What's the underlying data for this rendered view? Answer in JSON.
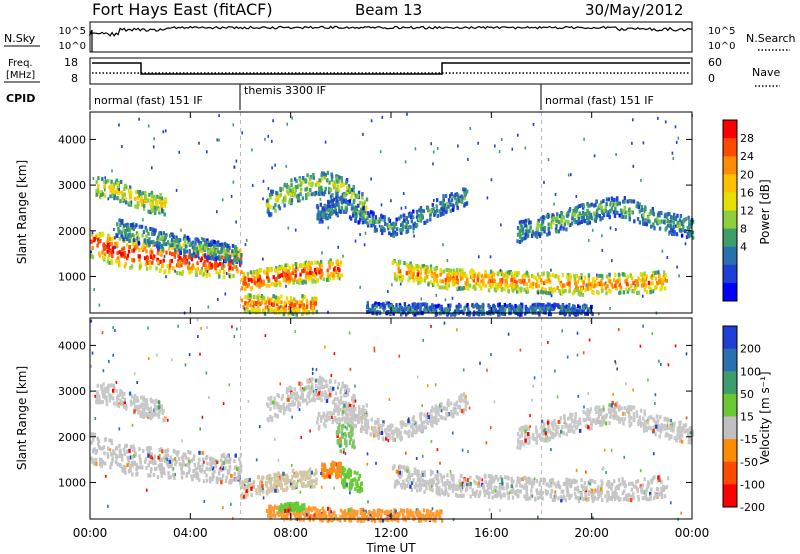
{
  "header": {
    "station": "Fort Hays East (fitACF)",
    "beam": "Beam 13",
    "date": "30/May/2012"
  },
  "top_panels": {
    "nsky_label": "N.Sky",
    "nsky_ticks": [
      "10^5",
      "10^0"
    ],
    "nsearch_label": "N.Search",
    "nsearch_ticks": [
      "10^5",
      "10^0"
    ],
    "freq_label_1": "Freq.",
    "freq_label_2": "[MHz]",
    "freq_ticks": [
      "18",
      "8"
    ],
    "nave_label": "Nave",
    "nave_ticks": [
      "60",
      "0"
    ],
    "cpid_label": "CPID",
    "cpid_segments": [
      {
        "label": "normal (fast) 151 IF",
        "start_h": 0,
        "end_h": 6
      },
      {
        "label": "themis 3300 IF",
        "start_h": 6,
        "end_h": 18
      },
      {
        "label": "normal (fast) 151 IF",
        "start_h": 18,
        "end_h": 24
      }
    ]
  },
  "chart_data": [
    {
      "type": "heatmap",
      "name": "power",
      "ylabel": "Slant Range [km]",
      "xlabel": "Time UT",
      "x_ticks": [
        "00:00",
        "04:00",
        "08:00",
        "12:00",
        "16:00",
        "20:00",
        "00:00"
      ],
      "x_tick_hours": [
        0,
        4,
        8,
        12,
        16,
        20,
        24
      ],
      "y_ticks": [
        1000,
        2000,
        3000,
        4000
      ],
      "ylim": [
        200,
        4600
      ],
      "xlim_hours": [
        0,
        24
      ],
      "colorbar_label": "Power [dB]",
      "colorbar_ticks": [
        "28",
        "24",
        "20",
        "16",
        "12",
        "8",
        "4"
      ],
      "colorbar_colors": [
        "#ff0000",
        "#ff4a00",
        "#ff8c00",
        "#ffc000",
        "#e6e000",
        "#8fcf3c",
        "#3d9e6b",
        "#2a6fb0",
        "#1e3fd6",
        "#0000ff"
      ],
      "bands": [
        {
          "points": [
            [
              0.2,
              3000
            ],
            [
              1,
              2950
            ],
            [
              2,
              2700
            ],
            [
              3,
              2600
            ]
          ],
          "width": 220,
          "level": 0.55
        },
        {
          "points": [
            [
              0,
              1800
            ],
            [
              1,
              1600
            ],
            [
              2,
              1500
            ],
            [
              3,
              1450
            ],
            [
              4,
              1400
            ],
            [
              5,
              1350
            ],
            [
              6,
              1350
            ]
          ],
          "width": 320,
          "level": 0.85
        },
        {
          "points": [
            [
              1,
              2100
            ],
            [
              2,
              1950
            ],
            [
              3,
              1800
            ],
            [
              4,
              1700
            ],
            [
              5,
              1600
            ],
            [
              6,
              1500
            ]
          ],
          "width": 200,
          "level": 0.35
        },
        {
          "points": [
            [
              6,
              900
            ],
            [
              7,
              1000
            ],
            [
              8,
              1100
            ],
            [
              9,
              1150
            ],
            [
              10,
              1200
            ]
          ],
          "width": 220,
          "level": 0.8
        },
        {
          "points": [
            [
              6,
              450
            ],
            [
              7,
              420
            ],
            [
              8,
              400
            ],
            [
              9,
              430
            ]
          ],
          "width": 200,
          "level": 0.75
        },
        {
          "points": [
            [
              7,
              2600
            ],
            [
              8,
              2900
            ],
            [
              9,
              3100
            ],
            [
              10,
              3000
            ],
            [
              11,
              2500
            ]
          ],
          "width": 260,
          "level": 0.45
        },
        {
          "points": [
            [
              9,
              2400
            ],
            [
              10,
              2600
            ],
            [
              11,
              2300
            ],
            [
              12,
              2100
            ],
            [
              13,
              2300
            ],
            [
              14,
              2600
            ],
            [
              15,
              2800
            ]
          ],
          "width": 200,
          "level": 0.3
        },
        {
          "points": [
            [
              12,
              1200
            ],
            [
              14,
              1000
            ],
            [
              16,
              950
            ],
            [
              18,
              900
            ],
            [
              20,
              850
            ],
            [
              22,
              900
            ],
            [
              23,
              950
            ]
          ],
          "width": 220,
          "level": 0.7
        },
        {
          "points": [
            [
              17,
              2000
            ],
            [
              19,
              2300
            ],
            [
              21,
              2600
            ],
            [
              22,
              2400
            ],
            [
              23,
              2200
            ],
            [
              24,
              2100
            ]
          ],
          "width": 220,
          "level": 0.35
        },
        {
          "points": [
            [
              11,
              350
            ],
            [
              14,
              300
            ],
            [
              17,
              320
            ],
            [
              20,
              300
            ]
          ],
          "width": 120,
          "level": 0.25
        }
      ]
    },
    {
      "type": "heatmap",
      "name": "velocity",
      "ylabel": "Slant Range [km]",
      "xlabel": "Time UT",
      "x_ticks": [
        "00:00",
        "04:00",
        "08:00",
        "12:00",
        "16:00",
        "20:00",
        "00:00"
      ],
      "x_tick_hours": [
        0,
        4,
        8,
        12,
        16,
        20,
        24
      ],
      "y_ticks": [
        1000,
        2000,
        3000,
        4000
      ],
      "ylim": [
        200,
        4600
      ],
      "xlim_hours": [
        0,
        24
      ],
      "colorbar_label": "Velocity [m s⁻¹]",
      "colorbar_ticks": [
        "200",
        "100",
        "50",
        "15",
        "-15",
        "-50",
        "-100",
        "-200"
      ],
      "colorbar_colors": [
        "#1e3fd6",
        "#2a6fb0",
        "#3d9e6b",
        "#6cc832",
        "#c0c0c0",
        "#ff8c00",
        "#ff4a00",
        "#ff0000"
      ],
      "bands": [
        {
          "points": [
            [
              0.2,
              3000
            ],
            [
              1,
              2950
            ],
            [
              2,
              2700
            ],
            [
              3,
              2600
            ]
          ],
          "width": 220,
          "color": "#c8c8c8"
        },
        {
          "points": [
            [
              0,
              1800
            ],
            [
              1,
              1600
            ],
            [
              2,
              1500
            ],
            [
              3,
              1450
            ],
            [
              4,
              1400
            ],
            [
              5,
              1350
            ],
            [
              6,
              1350
            ]
          ],
          "width": 320,
          "color": "#c4c4c4"
        },
        {
          "points": [
            [
              6,
              900
            ],
            [
              7,
              1000
            ],
            [
              8,
              1100
            ],
            [
              9,
              1150
            ]
          ],
          "width": 200,
          "color": "#d2c6a4"
        },
        {
          "points": [
            [
              9.2,
              1280
            ],
            [
              9.6,
              1320
            ],
            [
              10,
              1300
            ]
          ],
          "width": 160,
          "color": "#ff8c1a"
        },
        {
          "points": [
            [
              10,
              1150
            ],
            [
              10.8,
              1050
            ]
          ],
          "width": 220,
          "color": "#66cc33"
        },
        {
          "points": [
            [
              9.8,
              2000
            ],
            [
              10.5,
              2100
            ]
          ],
          "width": 300,
          "color": "#7fc466"
        },
        {
          "points": [
            [
              7,
              2600
            ],
            [
              8,
              2900
            ],
            [
              9,
              3100
            ],
            [
              10,
              3000
            ],
            [
              11,
              2500
            ]
          ],
          "width": 260,
          "color": "#c8c8c8"
        },
        {
          "points": [
            [
              9,
              2400
            ],
            [
              10,
              2600
            ],
            [
              11,
              2300
            ],
            [
              12,
              2100
            ],
            [
              13,
              2300
            ],
            [
              14,
              2600
            ],
            [
              15,
              2800
            ]
          ],
          "width": 200,
          "color": "#c8c8c8"
        },
        {
          "points": [
            [
              12,
              1200
            ],
            [
              14,
              1000
            ],
            [
              16,
              950
            ],
            [
              18,
              900
            ],
            [
              20,
              850
            ],
            [
              22,
              900
            ],
            [
              23,
              950
            ]
          ],
          "width": 240,
          "color": "#c6c6c6"
        },
        {
          "points": [
            [
              17,
              2000
            ],
            [
              19,
              2300
            ],
            [
              21,
              2600
            ],
            [
              22,
              2400
            ],
            [
              23,
              2200
            ],
            [
              24,
              2100
            ]
          ],
          "width": 220,
          "color": "#c8c8c8"
        },
        {
          "points": [
            [
              7,
              400
            ],
            [
              9,
              350
            ],
            [
              11,
              300
            ],
            [
              14,
              300
            ]
          ],
          "width": 140,
          "color": "#ff9a33"
        },
        {
          "points": [
            [
              7.5,
              480
            ],
            [
              8.5,
              520
            ]
          ],
          "width": 80,
          "color": "#66cc33"
        }
      ]
    }
  ]
}
